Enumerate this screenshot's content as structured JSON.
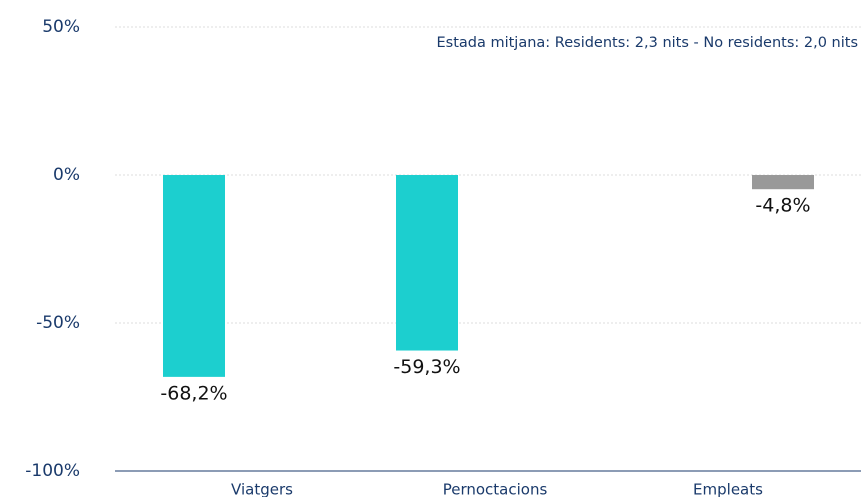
{
  "chart_data": {
    "type": "bar",
    "annotation": "Estada mitjana: Residents: 2,3 nits - No residents: 2,0 nits",
    "categories": [
      "Viatgers",
      "Pernoctacions",
      "Empleats"
    ],
    "series": [
      {
        "color": "#1ccfcf",
        "values": [
          -68.2,
          -59.3,
          null
        ],
        "value_labels": [
          "-68,2%",
          "-59,3%",
          null
        ]
      },
      {
        "color": "#999999",
        "values": [
          null,
          null,
          -4.8
        ],
        "value_labels": [
          null,
          null,
          "-4,8%"
        ]
      }
    ],
    "ylim": [
      -100,
      50
    ],
    "yticks": [
      {
        "value": 50,
        "label": "50%"
      },
      {
        "value": 0,
        "label": "0%"
      },
      {
        "value": -50,
        "label": "-50%"
      },
      {
        "value": -100,
        "label": "-100%"
      }
    ],
    "grid": true
  }
}
